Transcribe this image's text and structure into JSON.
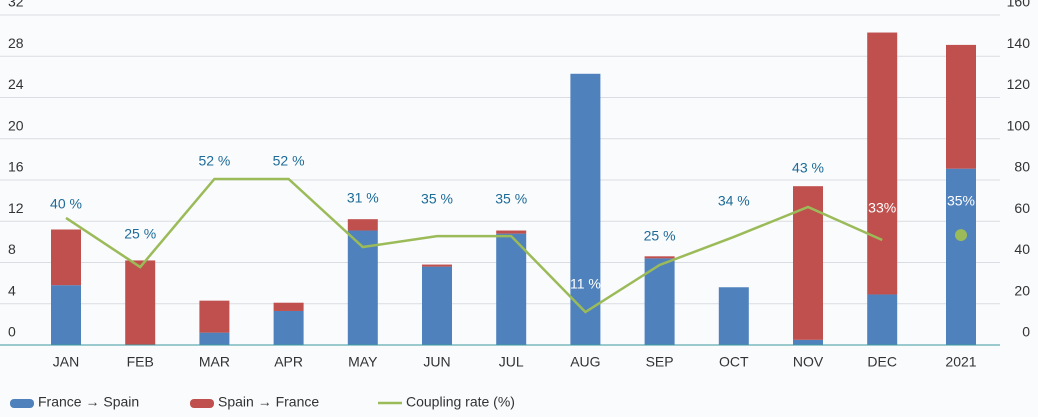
{
  "chart_data": {
    "type": "bar_line",
    "categories": [
      "JAN",
      "FEB",
      "MAR",
      "APR",
      "MAY",
      "JUN",
      "JUL",
      "AUG",
      "SEP",
      "OCT",
      "NOV",
      "DEC",
      "2021"
    ],
    "series": [
      {
        "name": "France → Spain",
        "color": "#4f81bd",
        "values": [
          5.8,
          0,
          1.2,
          3.3,
          11.1,
          7.6,
          10.8,
          26.3,
          8.4,
          5.6,
          0.5,
          4.9,
          17.1
        ]
      },
      {
        "name": "Spain → France",
        "color": "#c0504d",
        "values": [
          5.4,
          8.2,
          3.1,
          0.8,
          1.1,
          0.2,
          0.3,
          0,
          0.2,
          0,
          14.9,
          25.4,
          12.0
        ]
      },
      {
        "name": "Coupling rate (%)",
        "color": "#9bbb59",
        "axis": "y2",
        "values": [
          61.6,
          37.8,
          80.5,
          80.5,
          47.5,
          52.8,
          52.8,
          16,
          38.8,
          52.4,
          66.9,
          50.9,
          53.3
        ]
      }
    ],
    "annotations": [
      "40 %",
      "25 %",
      "52 %",
      "52 %",
      "31 %",
      "35 %",
      "35 %",
      "11 %",
      "25 %",
      "34 %",
      "43 %",
      "33%",
      "35%"
    ],
    "ylim": [
      0,
      32
    ],
    "yticks": [
      0,
      4,
      8,
      12,
      16,
      20,
      24,
      28,
      32
    ],
    "y2lim": [
      0,
      160
    ],
    "y2ticks": [
      0,
      20,
      40,
      60,
      80,
      100,
      120,
      140,
      160
    ],
    "grid": true
  }
}
